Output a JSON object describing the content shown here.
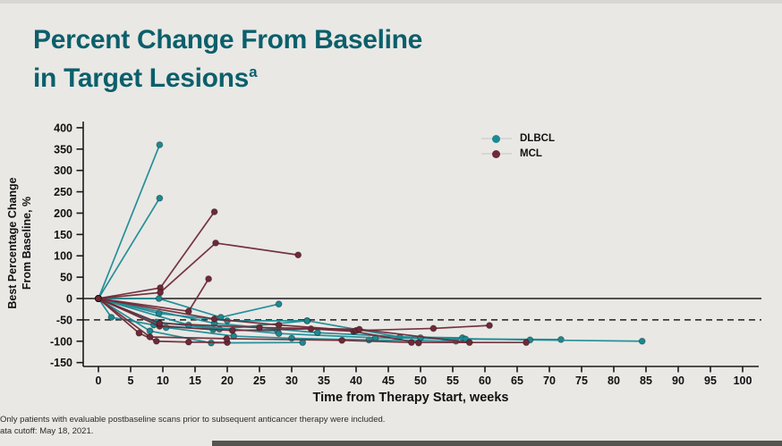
{
  "slide": {
    "title_line1": "Percent Change From Baseline",
    "title_line2": "in Target Lesions",
    "title_superscript": "a",
    "title_color": "#0b5f6b",
    "background_color": "#e9e8e5",
    "footnote_line1": "Only patients with evaluable postbaseline scans prior to subsequent anticancer therapy were included.",
    "footnote_line2": "ata cutoff: May 18, 2021."
  },
  "chart_data": {
    "type": "line",
    "subtype": "spider-plot-spaghetti",
    "xlabel": "Time from Therapy Start, weeks",
    "ylabel_line1": "Best Percentage Change",
    "ylabel_line2": "From Baseline, %",
    "xlim": [
      0,
      100
    ],
    "ylim": [
      -150,
      400
    ],
    "x_ticks": [
      0,
      5,
      10,
      15,
      20,
      25,
      30,
      35,
      40,
      45,
      50,
      55,
      60,
      65,
      70,
      75,
      80,
      85,
      90,
      95,
      100
    ],
    "y_ticks": [
      400,
      350,
      300,
      250,
      200,
      150,
      100,
      50,
      0,
      -50,
      -100,
      -150
    ],
    "grid": false,
    "reference_lines": [
      {
        "y": 0,
        "style": "solid"
      },
      {
        "y": -50,
        "style": "dashed"
      }
    ],
    "legend": [
      {
        "label": "DLBCL",
        "color": "#1b8a92"
      },
      {
        "label": "MCL",
        "color": "#6f2937"
      }
    ],
    "axis_color": "#1a1a1a",
    "series": [
      {
        "name": "DLBCL",
        "color": "#1b8a92",
        "trajectories": [
          [
            [
              0,
              0
            ],
            [
              9.5,
              360
            ]
          ],
          [
            [
              0,
              0
            ],
            [
              9.5,
              235
            ]
          ],
          [
            [
              0,
              0
            ],
            [
              9.4,
              0
            ],
            [
              19,
              -44
            ],
            [
              28,
              -13
            ]
          ],
          [
            [
              0,
              0
            ],
            [
              2,
              -44
            ],
            [
              8.6,
              -62
            ],
            [
              17.8,
              -73
            ],
            [
              27.8,
              -76
            ]
          ],
          [
            [
              0,
              0
            ],
            [
              9,
              -55
            ],
            [
              18.8,
              -72
            ],
            [
              32.4,
              -52
            ],
            [
              46.8,
              -90
            ],
            [
              56.5,
              -92
            ]
          ],
          [
            [
              0,
              0
            ],
            [
              8,
              -76
            ],
            [
              17.5,
              -104
            ],
            [
              31.7,
              -103
            ]
          ],
          [
            [
              0,
              0
            ],
            [
              10.5,
              -68
            ],
            [
              21,
              -88
            ],
            [
              30,
              -93
            ],
            [
              42,
              -97
            ],
            [
              55.5,
              -100
            ]
          ],
          [
            [
              0,
              0
            ],
            [
              14,
              -62
            ],
            [
              28,
              -82
            ],
            [
              43,
              -92
            ],
            [
              57,
              -95
            ],
            [
              71.8,
              -96
            ]
          ],
          [
            [
              0,
              0
            ],
            [
              18,
              -58
            ],
            [
              34,
              -80
            ],
            [
              50,
              -92
            ],
            [
              67,
              -97
            ],
            [
              84.4,
              -100
            ]
          ],
          [
            [
              0,
              0
            ],
            [
              9.4,
              -35
            ],
            [
              20,
              -52
            ],
            [
              32.4,
              -52
            ]
          ]
        ]
      },
      {
        "name": "MCL",
        "color": "#6f2937",
        "trajectories": [
          [
            [
              0,
              0
            ],
            [
              9.6,
              25
            ],
            [
              18,
              203
            ]
          ],
          [
            [
              0,
              0
            ],
            [
              9.6,
              14
            ],
            [
              18.2,
              130
            ],
            [
              31,
              102
            ]
          ],
          [
            [
              0,
              0
            ],
            [
              14,
              -30
            ],
            [
              17.1,
              46
            ]
          ],
          [
            [
              0,
              0
            ],
            [
              6.3,
              -81
            ],
            [
              9,
              -100
            ],
            [
              14,
              -102
            ],
            [
              20,
              -103
            ]
          ],
          [
            [
              0,
              0
            ],
            [
              8,
              -90
            ],
            [
              19.9,
              -94
            ],
            [
              37.8,
              -98
            ],
            [
              48.6,
              -103
            ],
            [
              66.4,
              -103
            ]
          ],
          [
            [
              0,
              0
            ],
            [
              9.5,
              -65
            ],
            [
              20.8,
              -75
            ],
            [
              33,
              -71
            ],
            [
              39.6,
              -77
            ],
            [
              49.7,
              -104
            ]
          ],
          [
            [
              0,
              0
            ],
            [
              18,
              -48
            ],
            [
              28,
              -62
            ],
            [
              40,
              -75
            ],
            [
              52,
              -70
            ],
            [
              60.7,
              -63
            ]
          ],
          [
            [
              0,
              0
            ],
            [
              9.5,
              -58
            ],
            [
              25,
              -68
            ],
            [
              40.5,
              -72
            ],
            [
              57.6,
              -103
            ]
          ]
        ]
      }
    ]
  }
}
